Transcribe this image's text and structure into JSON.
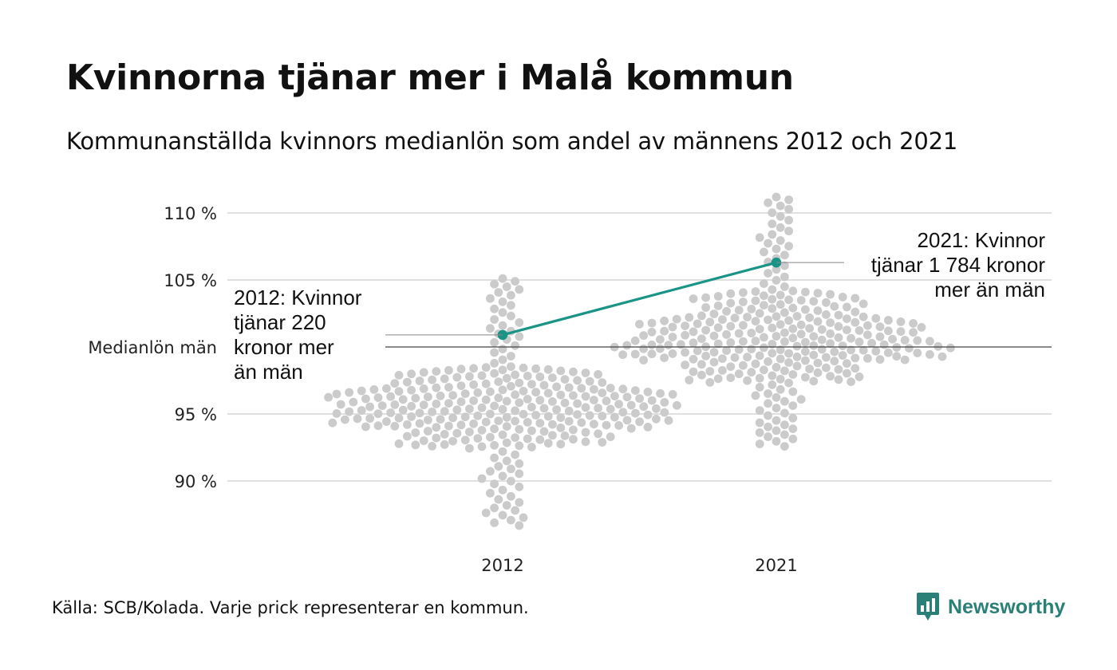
{
  "title": "Kvinnorna tjänar mer i Malå kommun",
  "subtitle": "Kommunanställda kvinnors medianlön som andel av männens 2012 och 2021",
  "source": "Källa: SCB/Kolada. Varje prick representerar en kommun.",
  "brand": {
    "name": "Newsworthy",
    "icon": "newsworthy-logo-icon"
  },
  "colors": {
    "highlight": "#1a9486",
    "dots": "#cbcbcb",
    "grid": "#e0e0e0",
    "reference_line": "#444444",
    "brand": "#2a8077"
  },
  "chart_data": {
    "type": "scatter",
    "subtype": "beeswarm",
    "categories": [
      "2012",
      "2021"
    ],
    "y_unit": "percent of men's median wage",
    "ylim": [
      86,
      111
    ],
    "yticks": [
      {
        "value": 90,
        "label": "90 %"
      },
      {
        "value": 95,
        "label": "95 %"
      },
      {
        "value": 100,
        "label": "Medianlön män"
      },
      {
        "value": 105,
        "label": "105 %"
      },
      {
        "value": 110,
        "label": "110 %"
      }
    ],
    "reference_value": 100,
    "grid": true,
    "highlight": {
      "values": [
        {
          "x": "2012",
          "y": 100.9
        },
        {
          "x": "2021",
          "y": 106.3
        }
      ]
    },
    "annotations": [
      {
        "category": "2012",
        "y": 100.9,
        "lines": [
          "2012: Kvinnor",
          "tjänar 220",
          "kronor mer",
          "än män"
        ]
      },
      {
        "category": "2021",
        "y": 106.3,
        "lines": [
          "2021: Kvinnor",
          "tjänar 1 784 kronor",
          "mer än män"
        ]
      }
    ],
    "distributions": [
      {
        "category": "2012",
        "point_count": 290,
        "y_min": 86.5,
        "q10": 92.5,
        "q25": 94.0,
        "median": 95.5,
        "q75": 97.0,
        "q90": 98.5,
        "y_max": 105.3
      },
      {
        "category": "2021",
        "point_count": 290,
        "y_min": 92.5,
        "q10": 97.3,
        "q25": 99.0,
        "median": 100.5,
        "q75": 102.3,
        "q90": 104.2,
        "y_max": 111.3
      }
    ]
  }
}
